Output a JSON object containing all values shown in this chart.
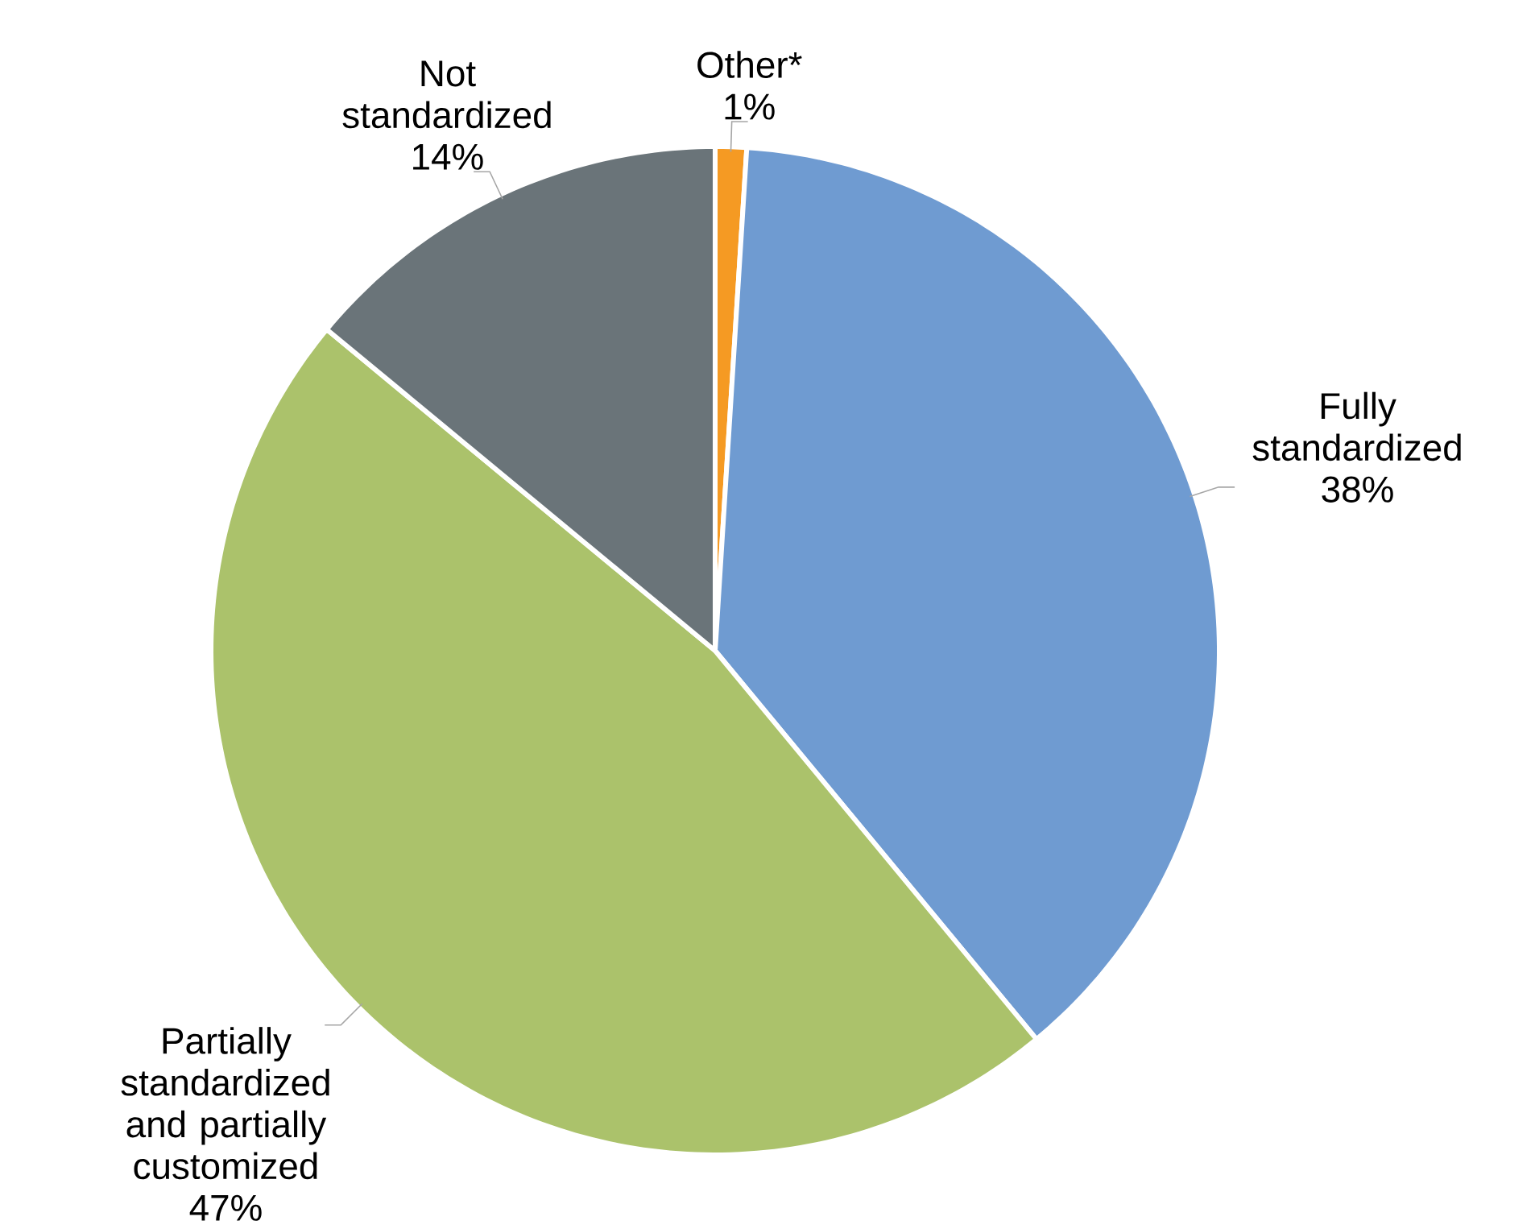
{
  "chart_data": {
    "type": "pie",
    "categories": [
      "Other*",
      "Fully standardized",
      "Partially standardized and partially customized",
      "Not standardized"
    ],
    "values": [
      1,
      38,
      47,
      14
    ],
    "value_labels": [
      "1%",
      "38%",
      "47%",
      "14%"
    ],
    "colors": [
      "#f59a23",
      "#6f9bd1",
      "#abc26b",
      "#6a7479"
    ]
  }
}
